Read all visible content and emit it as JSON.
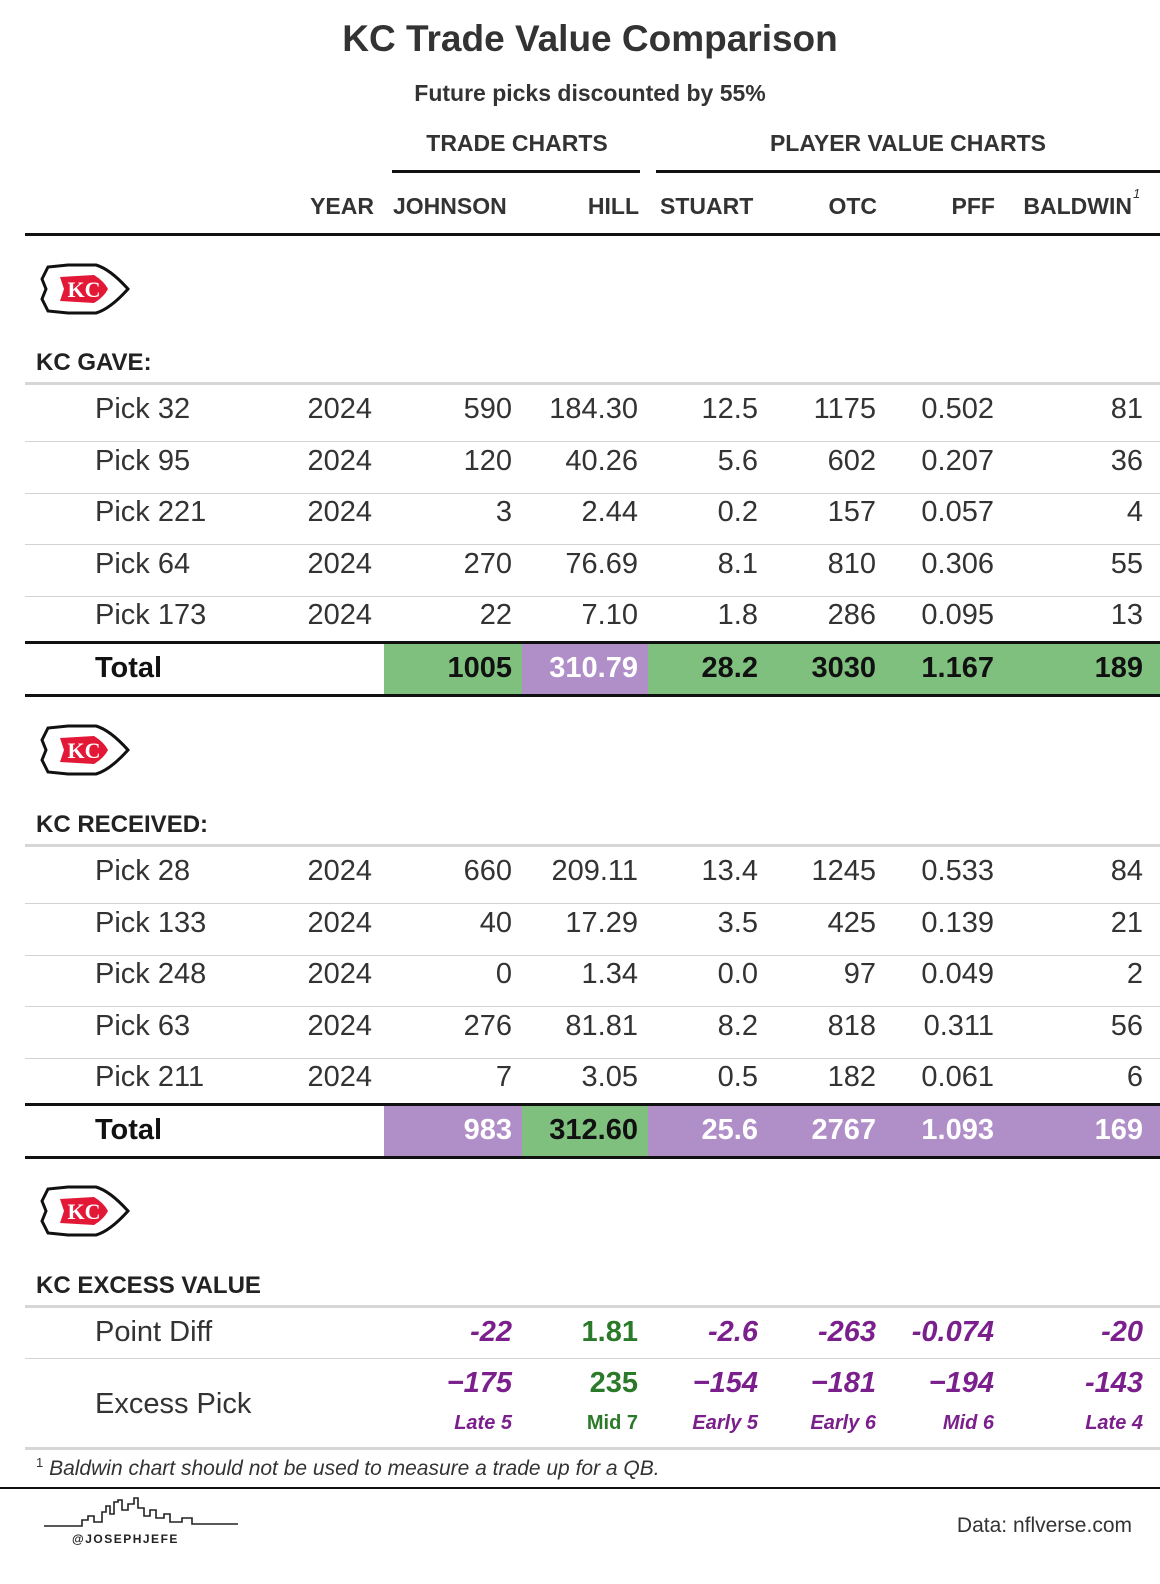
{
  "title": "KC Trade Value Comparison",
  "subtitle": "Future picks discounted by 55%",
  "groups": {
    "trade": "TRADE CHARTS",
    "player": "PLAYER VALUE CHARTS"
  },
  "columns": {
    "year": "YEAR",
    "johnson": "JOHNSON",
    "hill": "HILL",
    "stuart": "STUART",
    "otc": "OTC",
    "pff": "PFF",
    "baldwin": "BALDWIN",
    "baldwin_note": "1"
  },
  "gave": {
    "label": "KC GAVE:",
    "rows": [
      [
        "Pick 32",
        "2024",
        "590",
        "184.30",
        "12.5",
        "1175",
        "0.502",
        "81"
      ],
      [
        "Pick 95",
        "2024",
        "120",
        "40.26",
        "5.6",
        "602",
        "0.207",
        "36"
      ],
      [
        "Pick 221",
        "2024",
        "3",
        "2.44",
        "0.2",
        "157",
        "0.057",
        "4"
      ],
      [
        "Pick 64",
        "2024",
        "270",
        "76.69",
        "8.1",
        "810",
        "0.306",
        "55"
      ],
      [
        "Pick 173",
        "2024",
        "22",
        "7.10",
        "1.8",
        "286",
        "0.095",
        "13"
      ]
    ],
    "total": [
      "Total",
      "",
      "1005",
      "310.79",
      "28.2",
      "3030",
      "1.167",
      "189"
    ]
  },
  "received": {
    "label": "KC RECEIVED:",
    "rows": [
      [
        "Pick 28",
        "2024",
        "660",
        "209.11",
        "13.4",
        "1245",
        "0.533",
        "84"
      ],
      [
        "Pick 133",
        "2024",
        "40",
        "17.29",
        "3.5",
        "425",
        "0.139",
        "21"
      ],
      [
        "Pick 248",
        "2024",
        "0",
        "1.34",
        "0.0",
        "97",
        "0.049",
        "2"
      ],
      [
        "Pick 63",
        "2024",
        "276",
        "81.81",
        "8.2",
        "818",
        "0.311",
        "56"
      ],
      [
        "Pick 211",
        "2024",
        "7",
        "3.05",
        "0.5",
        "182",
        "0.061",
        "6"
      ]
    ],
    "total": [
      "Total",
      "",
      "983",
      "312.60",
      "25.6",
      "2767",
      "1.093",
      "169"
    ]
  },
  "excess": {
    "label": "KC EXCESS VALUE",
    "point_diff": {
      "label": "Point Diff",
      "values": [
        "-22",
        "1.81",
        "-2.6",
        "-263",
        "-0.074",
        "-20"
      ]
    },
    "excess_pick": {
      "label": "Excess Pick",
      "values": [
        "−175",
        "235",
        "−154",
        "−181",
        "−194",
        "-143"
      ],
      "rounds": [
        "Late 5",
        "Mid 7",
        "Early 5",
        "Early 6",
        "Mid 6",
        "Late 4"
      ]
    }
  },
  "footnote": {
    "mark": "1",
    "text": "Baldwin chart should not be used to measure a trade up for a QB."
  },
  "source": "Data: nflverse.com",
  "handle": "@JOSEPHJEFE",
  "colors": {
    "better": "#7fc07f",
    "worse": "#b08fc8",
    "negative_text": "#7a1f8c",
    "positive_text": "#2a7a2a"
  }
}
